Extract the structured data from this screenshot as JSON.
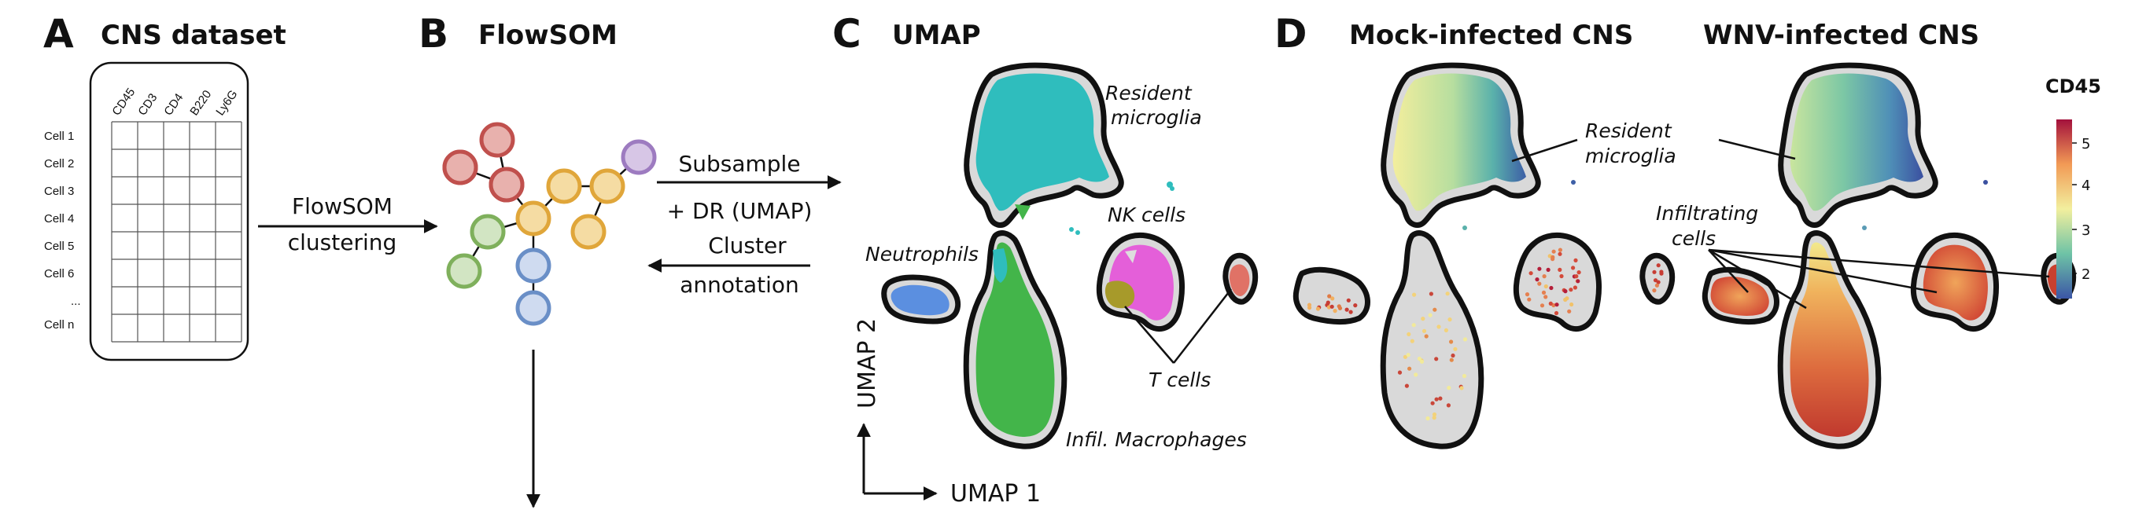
{
  "panels": {
    "a": {
      "letter": "A",
      "title": "CNS dataset",
      "columns": [
        "CD45",
        "CD3",
        "CD4",
        "B220",
        "Ly6G"
      ],
      "rows": [
        "Cell 1",
        "Cell 2",
        "Cell 3",
        "Cell 4",
        "Cell 5",
        "Cell 6",
        "...",
        "Cell n"
      ],
      "arrow_label_line1": "FlowSOM",
      "arrow_label_line2": "clustering"
    },
    "b": {
      "letter": "B",
      "title": "FlowSOM",
      "arrow_top_line1": "Subsample",
      "arrow_top_line2": "+ DR (UMAP)",
      "arrow_bottom_line1": "Cluster",
      "arrow_bottom_line2": "annotation"
    },
    "c": {
      "letter": "C",
      "title": "UMAP",
      "labels": {
        "resident_line1": "Resident",
        "resident_line2": "microglia",
        "nk": "NK cells",
        "neutrophils": "Neutrophils",
        "t_cells": "T cells",
        "macrophages": "Infil. Macrophages"
      },
      "x_axis": "UMAP 1",
      "y_axis": "UMAP 2"
    },
    "d": {
      "letter": "D",
      "title_mock": "Mock-infected CNS",
      "title_wnv": "WNV-infected CNS",
      "labels": {
        "resident_line1": "Resident",
        "resident_line2": "microglia",
        "infiltrating_line1": "Infiltrating",
        "infiltrating_line2": "cells"
      },
      "colorbar": {
        "title": "CD45",
        "ticks": [
          "5",
          "4",
          "3",
          "2"
        ]
      }
    }
  },
  "colors": {
    "microglia": "#2fbdbd",
    "macrophages": "#43b54a",
    "neutrophils": "#5b8fe0",
    "nk_cells": "#e45fd9",
    "t_cells": "#e07266",
    "olive": "#a79a2a",
    "node_red": "#c0504d",
    "node_yellow": "#e0a63a",
    "node_green": "#7fb05c",
    "node_blue": "#6a8fc7",
    "node_purple": "#9d7bc0"
  }
}
